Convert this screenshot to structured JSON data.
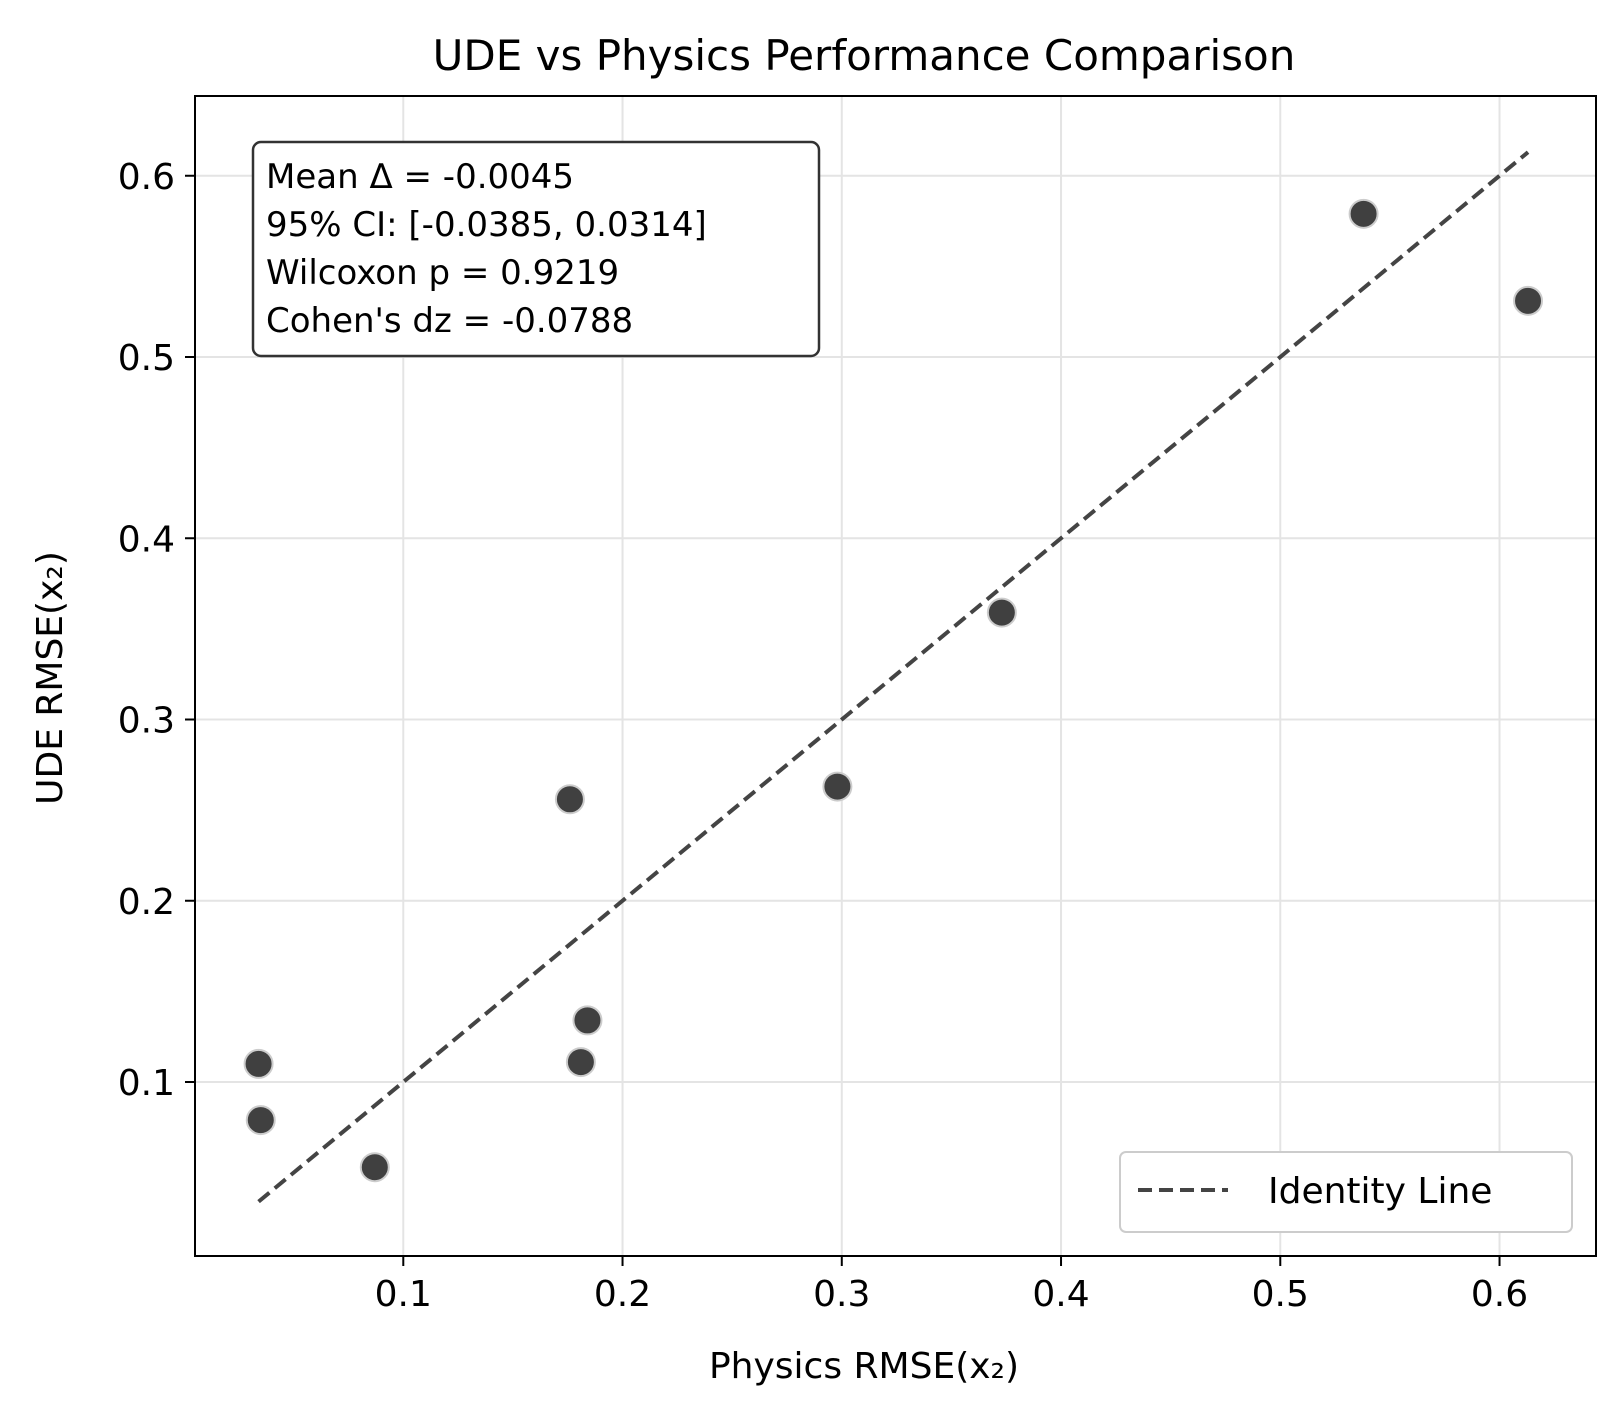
{
  "chart_data": {
    "type": "scatter",
    "title": "UDE vs Physics Performance Comparison",
    "xlabel": "Physics RMSE(x₂)",
    "ylabel": "UDE RMSE(x₂)",
    "xlim": [
      0.005,
      0.644
    ],
    "ylim": [
      0.004,
      0.644
    ],
    "xticks": [
      0.1,
      0.2,
      0.3,
      0.4,
      0.5,
      0.6
    ],
    "yticks": [
      0.1,
      0.2,
      0.3,
      0.4,
      0.5,
      0.6
    ],
    "tick_labels": [
      "0.1",
      "0.2",
      "0.3",
      "0.4",
      "0.5",
      "0.6"
    ],
    "grid": true,
    "points": [
      {
        "x": 0.034,
        "y": 0.11
      },
      {
        "x": 0.035,
        "y": 0.079
      },
      {
        "x": 0.087,
        "y": 0.053
      },
      {
        "x": 0.176,
        "y": 0.256
      },
      {
        "x": 0.181,
        "y": 0.111
      },
      {
        "x": 0.184,
        "y": 0.134
      },
      {
        "x": 0.298,
        "y": 0.263
      },
      {
        "x": 0.373,
        "y": 0.359
      },
      {
        "x": 0.538,
        "y": 0.579
      },
      {
        "x": 0.613,
        "y": 0.531
      }
    ],
    "identity_line": {
      "from": 0.034,
      "to": 0.613
    },
    "legend": {
      "placement": "lower-right",
      "entries": [
        "Identity Line"
      ]
    },
    "annotation": {
      "lines": [
        "Mean Δ = -0.0045",
        "95% CI: [-0.0385, 0.0314]",
        "Wilcoxon p = 0.9219",
        "Cohen's dz = -0.0788"
      ],
      "placement": "top-left"
    },
    "colors": {
      "points": "#404040",
      "point_edge": "#cccccc",
      "identity_line": "#444444",
      "grid": "#e4e4e4",
      "axes": "#000000"
    }
  }
}
